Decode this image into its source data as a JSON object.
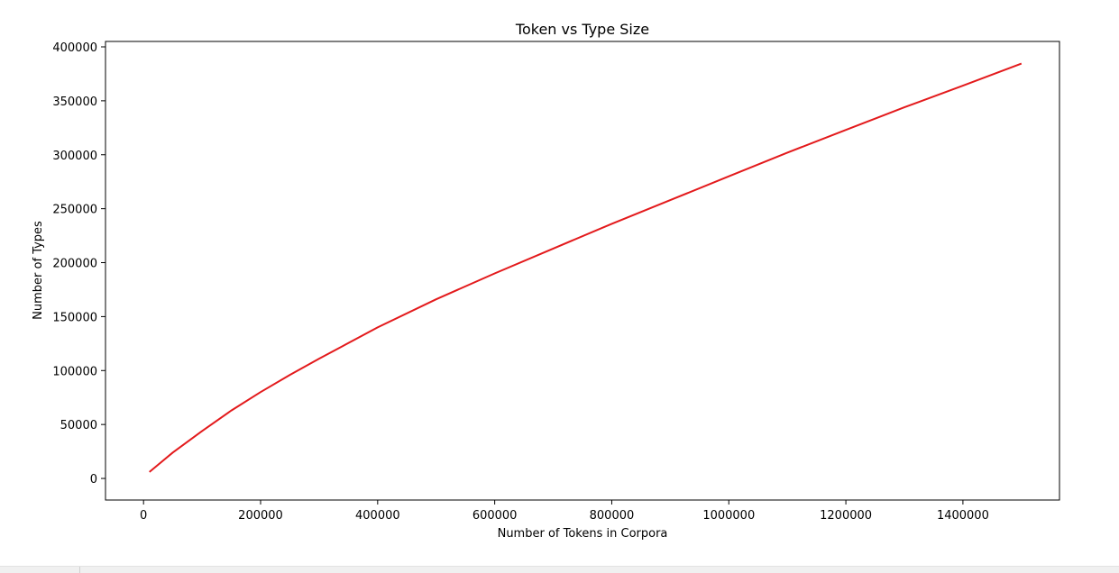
{
  "chart_data": {
    "type": "line",
    "title": "Token vs Type Size",
    "xlabel": "Number of Tokens in Corpora",
    "ylabel": "Number of Types",
    "xlim": [
      -65000,
      1565000
    ],
    "ylim": [
      -20000,
      405000
    ],
    "xticks": [
      0,
      200000,
      400000,
      600000,
      800000,
      1000000,
      1200000,
      1400000
    ],
    "xtick_labels": [
      "0",
      "200000",
      "400000",
      "600000",
      "800000",
      "1000000",
      "1200000",
      "1400000"
    ],
    "yticks": [
      0,
      50000,
      100000,
      150000,
      200000,
      250000,
      300000,
      350000,
      400000
    ],
    "ytick_labels": [
      "0",
      "50000",
      "100000",
      "150000",
      "200000",
      "250000",
      "300000",
      "350000",
      "400000"
    ],
    "grid": false,
    "series": [
      {
        "color": "#e31a1c",
        "x": [
          10000,
          50000,
          100000,
          150000,
          200000,
          250000,
          300000,
          400000,
          500000,
          600000,
          700000,
          800000,
          900000,
          1000000,
          1100000,
          1200000,
          1300000,
          1400000,
          1500000
        ],
        "y": [
          6000,
          24000,
          44000,
          63000,
          80000,
          96000,
          111000,
          140000,
          166000,
          190000,
          213000,
          236000,
          258000,
          280000,
          302000,
          323000,
          344000,
          364000,
          384500
        ]
      }
    ]
  }
}
